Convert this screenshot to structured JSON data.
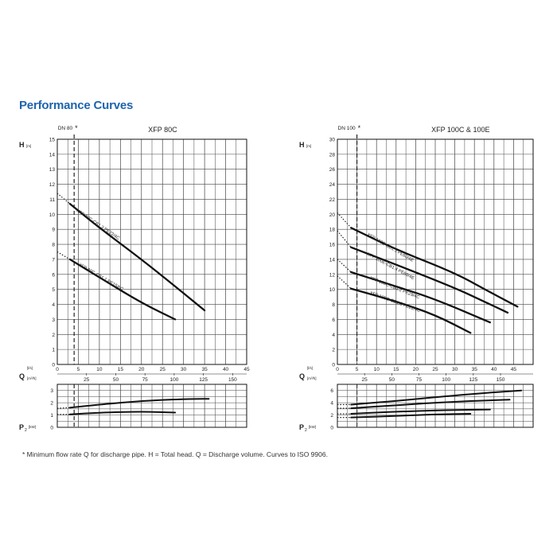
{
  "page": {
    "title": "Performance Curves",
    "footnote": "* Minimum flow rate Q for discharge pipe.   H = Total head.   Q = Discharge volume.   Curves to ISO 9906."
  },
  "colors": {
    "title": "#1d64ad",
    "grid": "#444444",
    "curve": "#111111"
  },
  "chart_data": [
    {
      "type": "line",
      "title": "XFP 80C",
      "dn_label": "DN 80",
      "dn_marker": "*",
      "dn_q_ls": 4,
      "head_axis": {
        "label": "H",
        "unit": "[m]",
        "range": [
          0,
          15
        ],
        "ticks": [
          0,
          1,
          2,
          3,
          4,
          5,
          6,
          7,
          8,
          9,
          10,
          11,
          12,
          13,
          14,
          15
        ]
      },
      "q_ls_axis": {
        "label": "Q",
        "unit": "[l/s]",
        "range": [
          0,
          45
        ],
        "ticks": [
          0,
          5,
          10,
          15,
          20,
          25,
          30,
          35,
          40,
          45
        ]
      },
      "q_m3h_axis": {
        "unit": "[m³/h]",
        "ticks": [
          25,
          50,
          75,
          100,
          125,
          150
        ]
      },
      "power_axis": {
        "label": "P",
        "subscript": "2",
        "unit": "[kW]",
        "range": [
          0,
          3.5
        ],
        "ticks": [
          0,
          1,
          2,
          3
        ]
      },
      "series": [
        {
          "name": "XFP 80C-CB1.3 PE22/4C",
          "label_at": [
            4.5,
            10.2
          ],
          "label_angle": 34,
          "dotted": [
            [
              0,
              11.4
            ],
            [
              3,
              10.7
            ]
          ],
          "points": [
            [
              3,
              10.7
            ],
            [
              10,
              9.1
            ],
            [
              20,
              7.0
            ],
            [
              28,
              5.2
            ],
            [
              35,
              3.6
            ]
          ]
        },
        {
          "name": "XFP 80C-CB1.1 PE15/6C",
          "label_at": [
            5,
            6.6
          ],
          "label_angle": 30,
          "dotted": [
            [
              0,
              7.5
            ],
            [
              3,
              7.0
            ]
          ],
          "points": [
            [
              3,
              7.0
            ],
            [
              10,
              5.8
            ],
            [
              20,
              4.1
            ],
            [
              28,
              3.0
            ]
          ]
        }
      ],
      "power_series": [
        {
          "name": "XFP 80C-CB1.3 PE22/4C",
          "dotted": [
            [
              0,
              1.55
            ],
            [
              3,
              1.6
            ]
          ],
          "points": [
            [
              3,
              1.6
            ],
            [
              10,
              1.85
            ],
            [
              20,
              2.15
            ],
            [
              30,
              2.3
            ],
            [
              36,
              2.32
            ]
          ]
        },
        {
          "name": "XFP 80C-CB1.1 PE15/6C",
          "dotted": [
            [
              0,
              1.05
            ],
            [
              3,
              1.05
            ]
          ],
          "points": [
            [
              3,
              1.05
            ],
            [
              10,
              1.2
            ],
            [
              20,
              1.28
            ],
            [
              28,
              1.2
            ]
          ]
        }
      ]
    },
    {
      "type": "line",
      "title": "XFP 100C & 100E",
      "dn_label": "DN 100",
      "dn_marker": "*",
      "dn_q_ls": 5,
      "head_axis": {
        "label": "H",
        "unit": "[m]",
        "range": [
          0,
          30
        ],
        "ticks": [
          0,
          2,
          4,
          6,
          8,
          10,
          12,
          14,
          16,
          18,
          20,
          22,
          24,
          26,
          28,
          30
        ]
      },
      "q_ls_axis": {
        "label": "Q",
        "unit": "[l/s]",
        "range": [
          0,
          50
        ],
        "ticks": [
          0,
          5,
          10,
          15,
          20,
          25,
          30,
          35,
          40,
          45
        ]
      },
      "q_m3h_axis": {
        "unit": "[m³/h]",
        "ticks": [
          25,
          50,
          75,
          100,
          125,
          150
        ]
      },
      "power_axis": {
        "label": "P",
        "subscript": "2",
        "unit": "[kW]",
        "range": [
          0,
          7
        ],
        "ticks": [
          0,
          2,
          4,
          6
        ]
      },
      "series": [
        {
          "name": "XFP 100E-CB1.3 PE60/4E",
          "label_at": [
            7.5,
            17.2
          ],
          "label_angle": 30,
          "dotted": [
            [
              0,
              20.2
            ],
            [
              3.5,
              18.2
            ]
          ],
          "points": [
            [
              3.5,
              18.2
            ],
            [
              15,
              15.3
            ],
            [
              30,
              12.2
            ],
            [
              38,
              9.9
            ],
            [
              46,
              7.7
            ]
          ]
        },
        {
          "name": "XFP 100E-CB1.4 PE60/4E",
          "label_at": [
            7.5,
            14.6
          ],
          "label_angle": 28,
          "dotted": [
            [
              0,
              17.8
            ],
            [
              3.5,
              15.6
            ]
          ],
          "points": [
            [
              3.5,
              15.6
            ],
            [
              15,
              13.3
            ],
            [
              30,
              10.2
            ],
            [
              37,
              8.5
            ],
            [
              43.5,
              6.9
            ]
          ]
        },
        {
          "name": "XFP 100C-CB1.2 PE29/4C",
          "label_at": [
            8.2,
            11.4
          ],
          "label_angle": 22,
          "dotted": [
            [
              0,
              14.0
            ],
            [
              3.5,
              12.3
            ]
          ],
          "points": [
            [
              3.5,
              12.3
            ],
            [
              15,
              10.4
            ],
            [
              25,
              8.7
            ],
            [
              39,
              5.6
            ]
          ]
        },
        {
          "name": "XFP 100C-CB1.3 PE22/4C",
          "label_at": [
            8.2,
            9.4
          ],
          "label_angle": 20,
          "dotted": [
            [
              0,
              11.8
            ],
            [
              3.5,
              10.1
            ]
          ],
          "points": [
            [
              3.5,
              10.1
            ],
            [
              15,
              8.4
            ],
            [
              25,
              6.6
            ],
            [
              34,
              4.2
            ]
          ]
        }
      ],
      "power_series": [
        {
          "name": "XFP 100E-CB1.3 PE60/4E",
          "dotted": [
            [
              0,
              3.7
            ],
            [
              3.5,
              3.7
            ]
          ],
          "points": [
            [
              3.5,
              3.7
            ],
            [
              15,
              4.3
            ],
            [
              30,
              5.2
            ],
            [
              40,
              5.7
            ],
            [
              47,
              6.0
            ]
          ]
        },
        {
          "name": "XFP 100E-CB1.4 PE60/4E",
          "dotted": [
            [
              0,
              3.1
            ],
            [
              3.5,
              3.1
            ]
          ],
          "points": [
            [
              3.5,
              3.1
            ],
            [
              15,
              3.6
            ],
            [
              30,
              4.2
            ],
            [
              44,
              4.5
            ]
          ]
        },
        {
          "name": "XFP 100C-CB1.2 PE29/4C",
          "dotted": [
            [
              0,
              2.2
            ],
            [
              3.5,
              2.2
            ]
          ],
          "points": [
            [
              3.5,
              2.2
            ],
            [
              15,
              2.55
            ],
            [
              28,
              2.8
            ],
            [
              39,
              2.9
            ]
          ]
        },
        {
          "name": "XFP 100C-CB1.3 PE22/4C",
          "dotted": [
            [
              0,
              1.6
            ],
            [
              3.5,
              1.6
            ]
          ],
          "points": [
            [
              3.5,
              1.6
            ],
            [
              15,
              1.85
            ],
            [
              25,
              2.1
            ],
            [
              34,
              2.2
            ]
          ]
        }
      ]
    }
  ]
}
